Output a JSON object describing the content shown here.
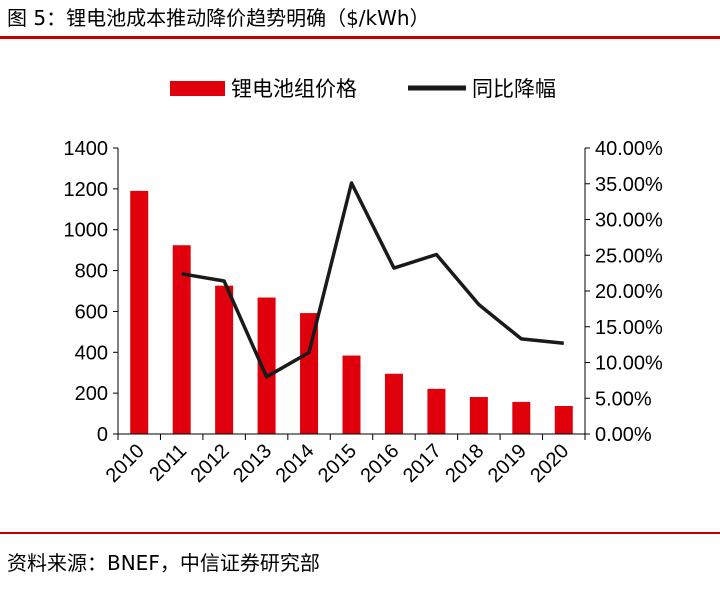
{
  "figure": {
    "title": "图 5：锂电池成本推动降价趋势明确（$/kWh）",
    "source": "资料来源：BNEF，中信证券研究部"
  },
  "colors": {
    "bar": "#e0000c",
    "line": "#1a1a1a",
    "accent": "#c00000"
  },
  "chart_data": {
    "type": "bar",
    "title": "",
    "categories": [
      "2010",
      "2011",
      "2012",
      "2013",
      "2014",
      "2015",
      "2016",
      "2017",
      "2018",
      "2019",
      "2020"
    ],
    "series": [
      {
        "name": "锂电池组价格",
        "type": "bar",
        "axis": "left",
        "values": [
          1190,
          924,
          726,
          668,
          592,
          384,
          295,
          221,
          181,
          157,
          137
        ]
      },
      {
        "name": "同比降幅",
        "type": "line",
        "axis": "right",
        "values": [
          null,
          22.4,
          21.4,
          8.0,
          11.4,
          35.1,
          23.2,
          25.1,
          18.1,
          13.3,
          12.7
        ]
      }
    ],
    "xlabel": "",
    "ylabel": "",
    "ylim": [
      0,
      1400
    ],
    "yticks": [
      0,
      200,
      400,
      600,
      800,
      1000,
      1200,
      1400
    ],
    "y2lim": [
      0,
      40
    ],
    "y2ticks": [
      "0.00%",
      "5.00%",
      "10.00%",
      "15.00%",
      "20.00%",
      "25.00%",
      "30.00%",
      "35.00%",
      "40.00%"
    ],
    "grid": false,
    "legend": "top"
  }
}
